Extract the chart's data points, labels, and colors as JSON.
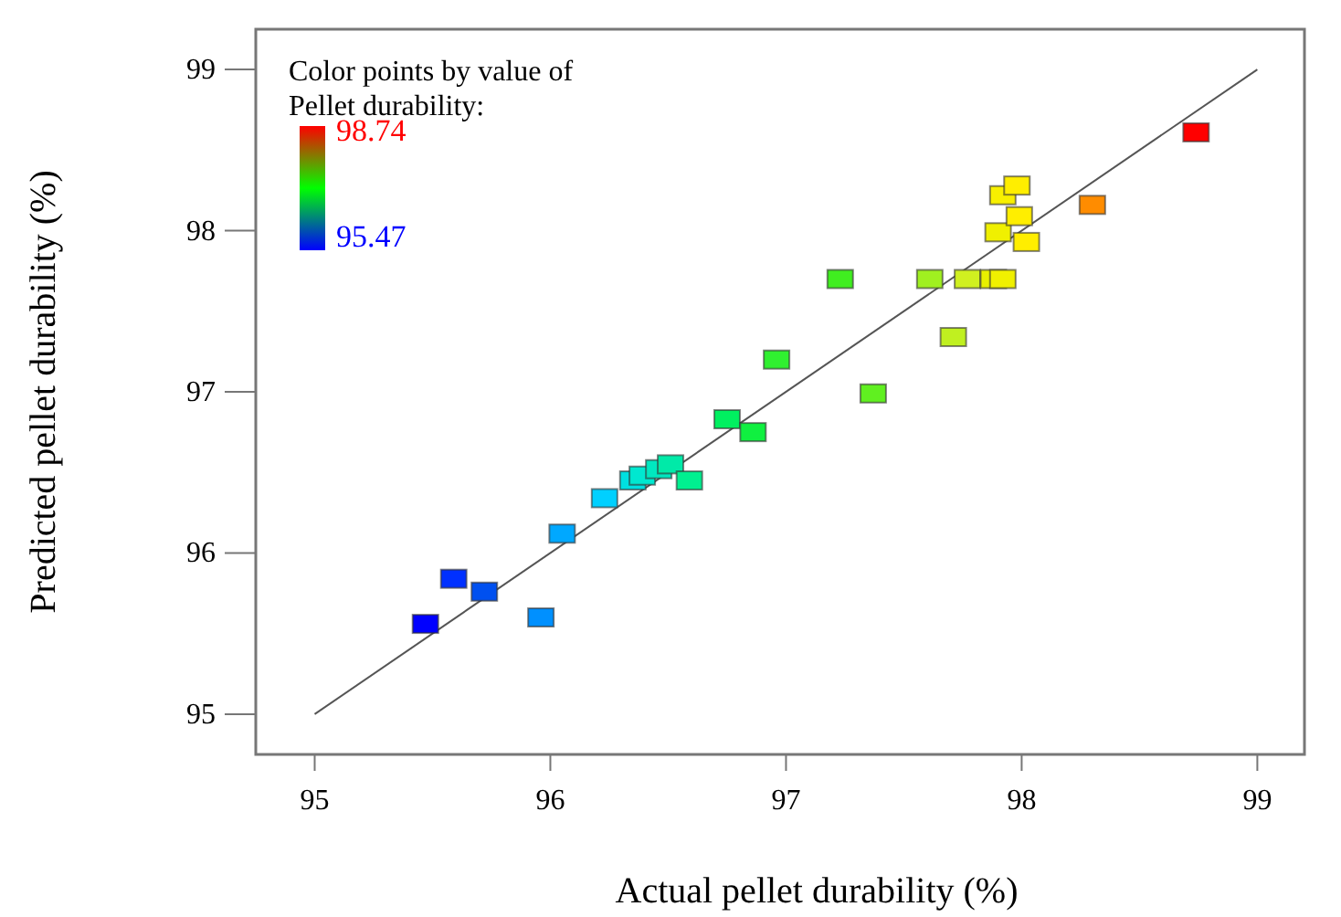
{
  "chart_data": {
    "type": "scatter",
    "xlabel": "Actual pellet durability (%)",
    "ylabel": "Predicted pellet durability (%)",
    "legend_title": "Color points by value of Pellet durability:",
    "annotations": [
      "98.74",
      "95.47"
    ],
    "xlim": [
      94.75,
      99.2
    ],
    "ylim": [
      94.75,
      99.25
    ],
    "xticks": [
      95,
      96,
      97,
      98,
      99
    ],
    "yticks": [
      95,
      96,
      97,
      98,
      99
    ],
    "grid": false,
    "marker": "square",
    "series": [
      {
        "type": "line",
        "color": "#555555",
        "marker": "none",
        "line_style": "solid",
        "x": [
          95,
          99
        ],
        "values": [
          95,
          99
        ]
      },
      {
        "type": "scatter",
        "x": [
          95.47,
          95.59,
          95.72,
          95.96,
          96.05,
          96.23,
          96.35,
          96.39,
          96.46,
          96.51,
          96.59,
          96.75,
          96.86,
          96.96,
          97.23,
          97.37,
          97.61,
          97.71,
          97.77,
          97.88,
          97.92,
          97.9,
          98.02,
          97.99,
          97.92,
          97.98,
          98.3,
          98.74
        ],
        "values": [
          95.56,
          95.84,
          95.76,
          95.6,
          96.12,
          96.34,
          96.45,
          96.48,
          96.52,
          96.55,
          96.45,
          96.83,
          96.75,
          97.2,
          97.7,
          96.99,
          97.7,
          97.34,
          97.7,
          97.7,
          97.7,
          97.99,
          97.93,
          98.09,
          98.22,
          98.28,
          98.16,
          98.61
        ],
        "colors": [
          "#0000ff",
          "#0030ff",
          "#0050f0",
          "#0090ff",
          "#00a8ff",
          "#00d0ff",
          "#00e0e0",
          "#00e8d0",
          "#00e8c0",
          "#00eaa8",
          "#00f090",
          "#00f060",
          "#10f040",
          "#30f030",
          "#40ee20",
          "#60f020",
          "#a0f020",
          "#c0f020",
          "#d0f020",
          "#e8f000",
          "#f0f000",
          "#f0f000",
          "#ffee00",
          "#ffee00",
          "#f8f000",
          "#ffee00",
          "#ff8c00",
          "#ff0000"
        ]
      }
    ]
  }
}
